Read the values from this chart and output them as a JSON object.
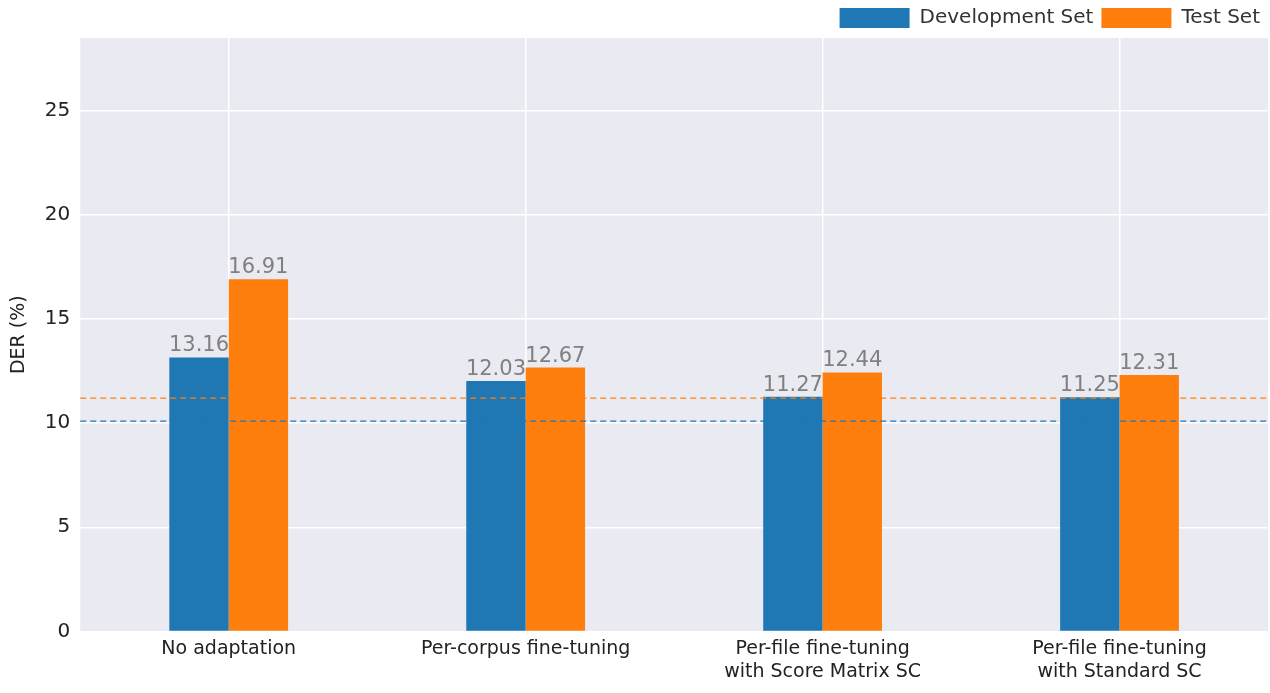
{
  "chart_data": {
    "type": "bar",
    "ylabel": "DER (%)",
    "categories": [
      "No adaptation",
      "Per-corpus fine-tuning",
      "Per-file fine-tuning\nwith Score Matrix SC",
      "Per-file fine-tuning\nwith Standard SC"
    ],
    "series": [
      {
        "name": "Development Set",
        "color": "#1f77b4",
        "values": [
          13.16,
          12.03,
          11.27,
          11.25
        ]
      },
      {
        "name": "Test Set",
        "color": "#ff7f0e",
        "values": [
          16.91,
          12.67,
          12.44,
          12.31
        ]
      }
    ],
    "ylim": [
      0,
      28.5
    ],
    "yticks": [
      0,
      5,
      10,
      15,
      20,
      25
    ],
    "grid": true,
    "legend": "top right",
    "data_labels": true,
    "ref_lines": [
      {
        "axis": "y",
        "value": 11.2,
        "color": "#ff7f0e",
        "line_style": "dashed"
      },
      {
        "axis": "y",
        "value": 10.1,
        "color": "#1f77b4",
        "line_style": "dashed"
      }
    ]
  }
}
